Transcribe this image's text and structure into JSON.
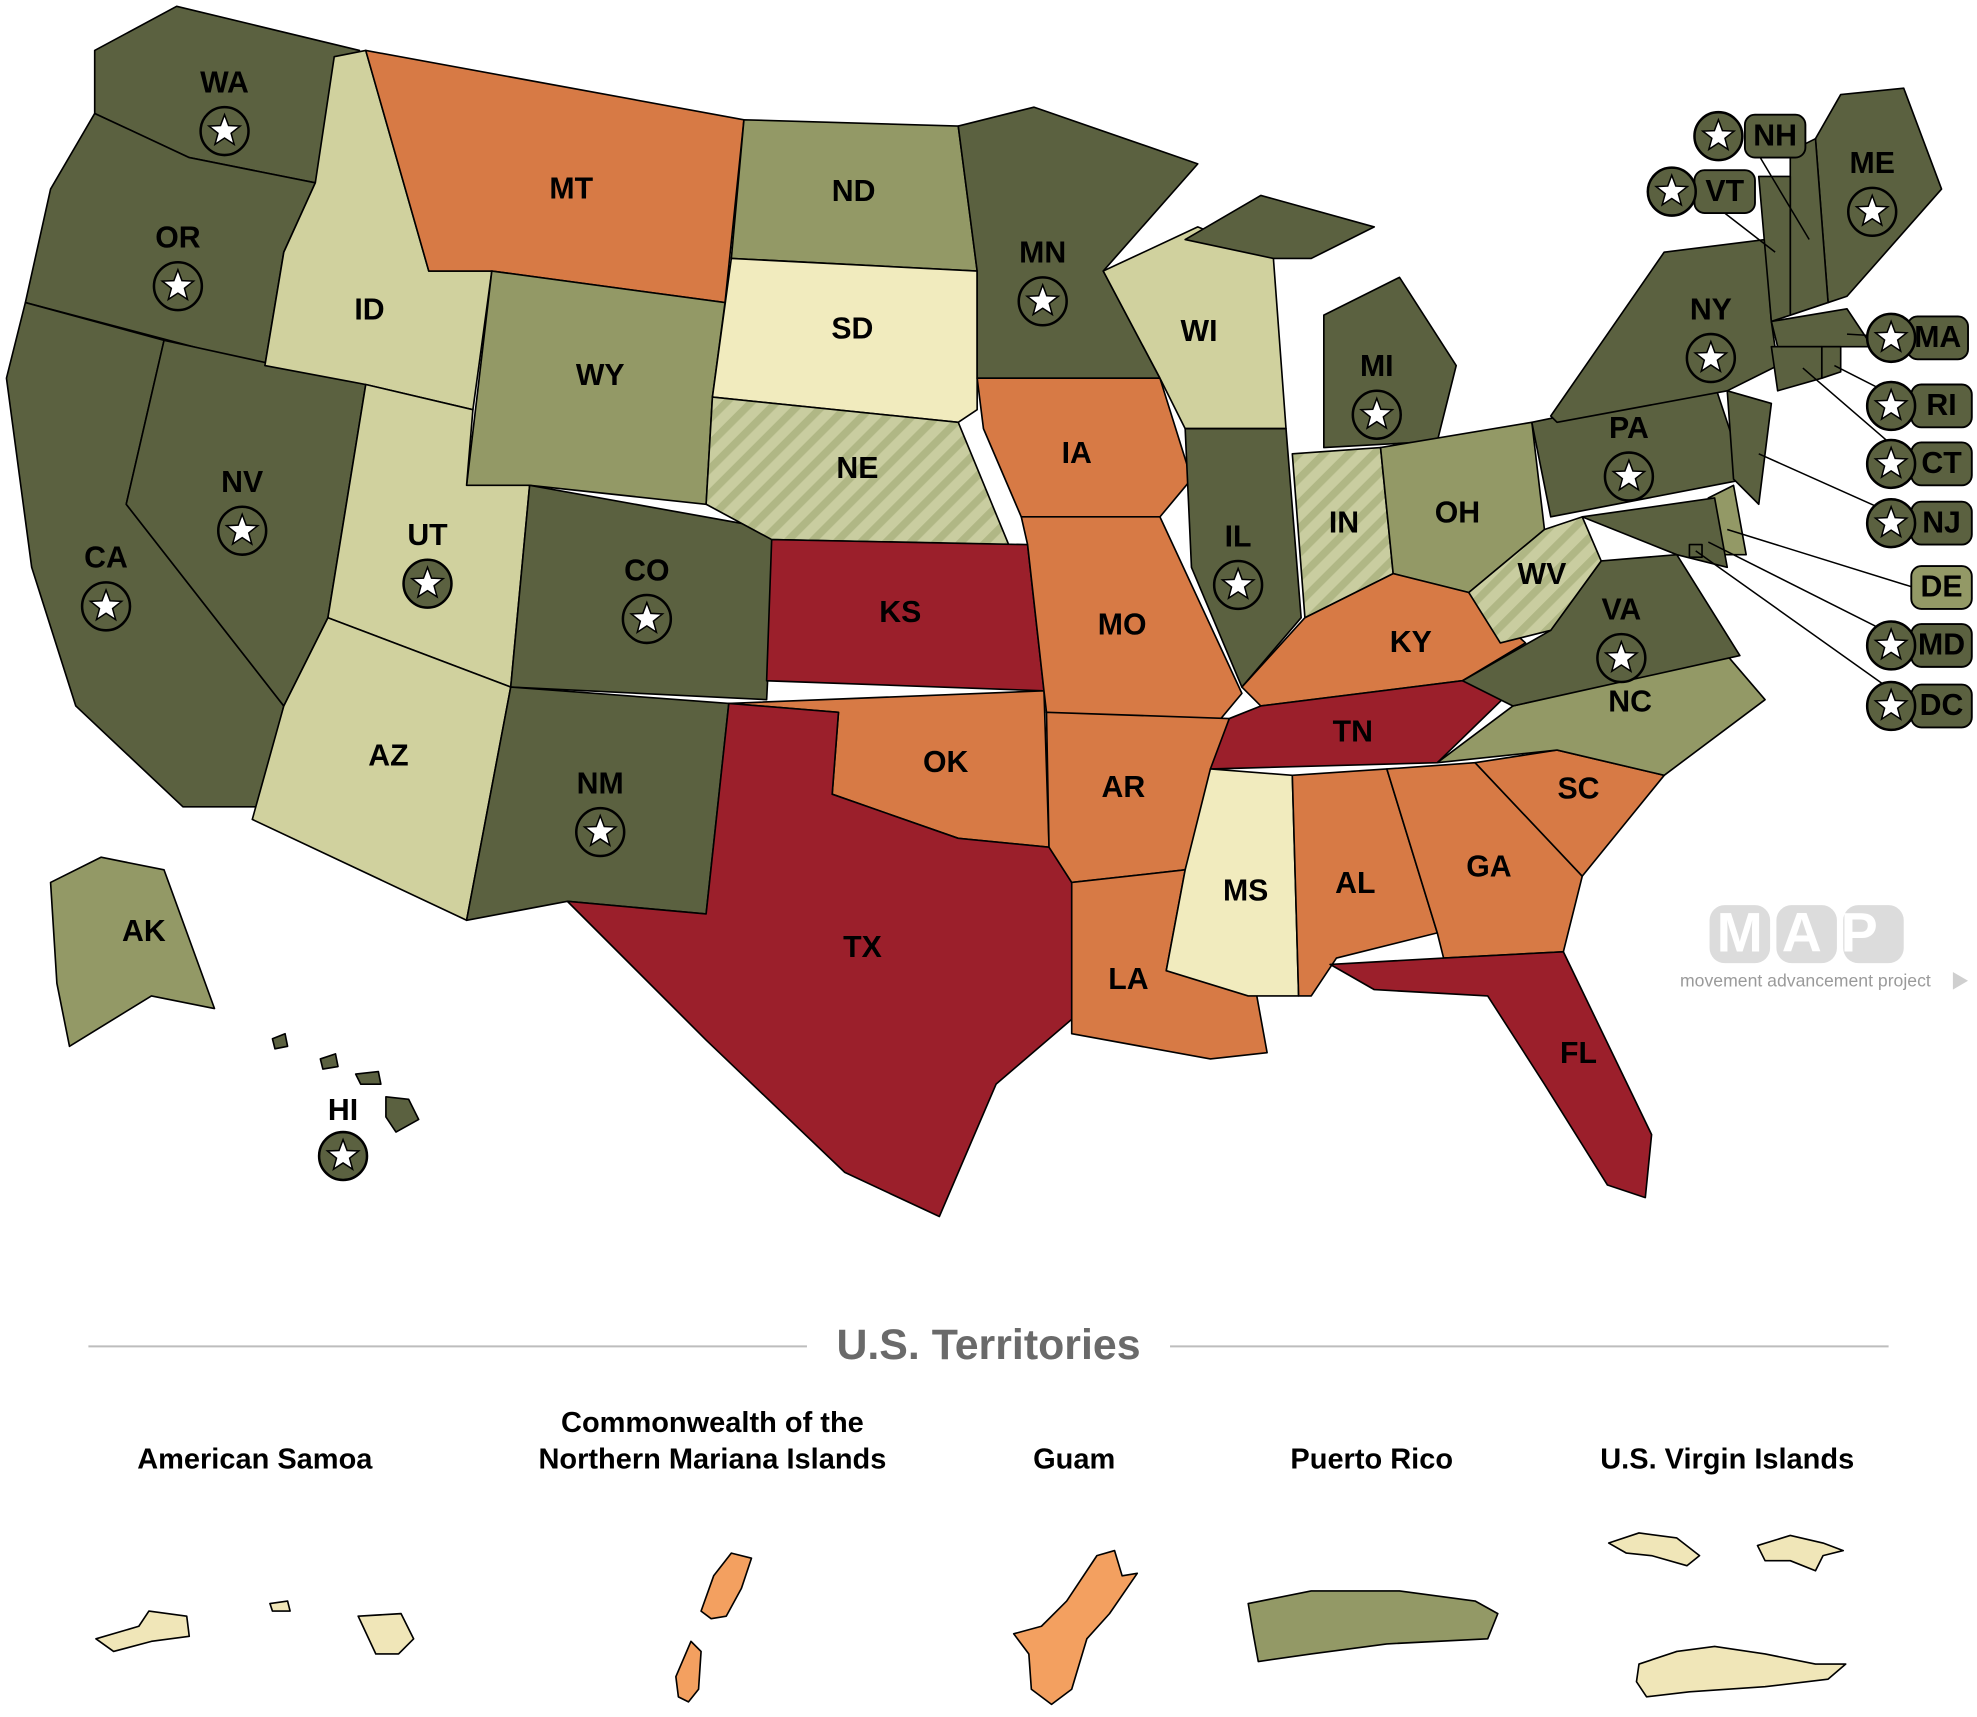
{
  "map": {
    "states": [
      {
        "abbr": "WA",
        "fill": "#5b6140",
        "star": true
      },
      {
        "abbr": "OR",
        "fill": "#5b6140",
        "star": true
      },
      {
        "abbr": "CA",
        "fill": "#5b6140",
        "star": true
      },
      {
        "abbr": "NV",
        "fill": "#5b6140",
        "star": true
      },
      {
        "abbr": "ID",
        "fill": "#d0d19e",
        "star": false
      },
      {
        "abbr": "MT",
        "fill": "#d77a45",
        "star": false
      },
      {
        "abbr": "WY",
        "fill": "#939966",
        "star": false
      },
      {
        "abbr": "UT",
        "fill": "#d0d19e",
        "star": true
      },
      {
        "abbr": "AZ",
        "fill": "#d0d19e",
        "star": false
      },
      {
        "abbr": "CO",
        "fill": "#5b6140",
        "star": true
      },
      {
        "abbr": "NM",
        "fill": "#5b6140",
        "star": true
      },
      {
        "abbr": "ND",
        "fill": "#939966",
        "star": false
      },
      {
        "abbr": "SD",
        "fill": "#f1ebbe",
        "star": false
      },
      {
        "abbr": "NE",
        "fill": "#c9cda0",
        "star": false,
        "hatched": true
      },
      {
        "abbr": "KS",
        "fill": "#9b1f2b",
        "star": false
      },
      {
        "abbr": "OK",
        "fill": "#d77a45",
        "star": false
      },
      {
        "abbr": "TX",
        "fill": "#9b1f2b",
        "star": false
      },
      {
        "abbr": "MN",
        "fill": "#5b6140",
        "star": true
      },
      {
        "abbr": "IA",
        "fill": "#d77a45",
        "star": false
      },
      {
        "abbr": "MO",
        "fill": "#d77a45",
        "star": false
      },
      {
        "abbr": "AR",
        "fill": "#d77a45",
        "star": false
      },
      {
        "abbr": "LA",
        "fill": "#d77a45",
        "star": false
      },
      {
        "abbr": "WI",
        "fill": "#d0d19e",
        "star": false
      },
      {
        "abbr": "IL",
        "fill": "#5b6140",
        "star": true
      },
      {
        "abbr": "MI",
        "fill": "#5b6140",
        "star": true
      },
      {
        "abbr": "IN",
        "fill": "#c9cda0",
        "star": false,
        "hatched": true
      },
      {
        "abbr": "OH",
        "fill": "#939966",
        "star": false
      },
      {
        "abbr": "KY",
        "fill": "#d77a45",
        "star": false
      },
      {
        "abbr": "TN",
        "fill": "#9b1f2b",
        "star": false
      },
      {
        "abbr": "MS",
        "fill": "#f1ebbe",
        "star": false
      },
      {
        "abbr": "AL",
        "fill": "#d77a45",
        "star": false
      },
      {
        "abbr": "GA",
        "fill": "#d77a45",
        "star": false
      },
      {
        "abbr": "FL",
        "fill": "#9b1f2b",
        "star": false
      },
      {
        "abbr": "SC",
        "fill": "#d77a45",
        "star": false
      },
      {
        "abbr": "NC",
        "fill": "#939966",
        "star": false
      },
      {
        "abbr": "VA",
        "fill": "#5b6140",
        "star": true
      },
      {
        "abbr": "WV",
        "fill": "#c9cda0",
        "star": false,
        "hatched": true
      },
      {
        "abbr": "PA",
        "fill": "#5b6140",
        "star": true
      },
      {
        "abbr": "NY",
        "fill": "#5b6140",
        "star": true
      },
      {
        "abbr": "ME",
        "fill": "#5b6140",
        "star": true
      },
      {
        "abbr": "AK",
        "fill": "#939966",
        "star": false
      },
      {
        "abbr": "HI",
        "fill": "#5b6140",
        "star": true
      },
      {
        "abbr": "NH",
        "fill": "#5b6140",
        "star": true
      },
      {
        "abbr": "VT",
        "fill": "#5b6140",
        "star": true
      },
      {
        "abbr": "MA",
        "fill": "#5b6140",
        "star": true
      },
      {
        "abbr": "RI",
        "fill": "#5b6140",
        "star": true
      },
      {
        "abbr": "CT",
        "fill": "#5b6140",
        "star": true
      },
      {
        "abbr": "NJ",
        "fill": "#5b6140",
        "star": true
      },
      {
        "abbr": "DE",
        "fill": "#939966",
        "star": false
      },
      {
        "abbr": "MD",
        "fill": "#5b6140",
        "star": true
      },
      {
        "abbr": "DC",
        "fill": "#5b6140",
        "star": true
      }
    ]
  },
  "logo": {
    "initials": "MAP",
    "tagline": "movement advancement project"
  },
  "territories": {
    "heading": "U.S. Territories",
    "items": [
      {
        "name": [
          "American Samoa"
        ],
        "fill": "#f0e6b8"
      },
      {
        "name": [
          "Commonwealth of the",
          "Northern Mariana Islands"
        ],
        "fill": "#f3a060"
      },
      {
        "name": [
          "Guam"
        ],
        "fill": "#f3a060"
      },
      {
        "name": [
          "Puerto Rico"
        ],
        "fill": "#939966"
      },
      {
        "name": [
          "U.S. Virgin Islands"
        ],
        "fill": "#f0e6b8"
      }
    ]
  }
}
